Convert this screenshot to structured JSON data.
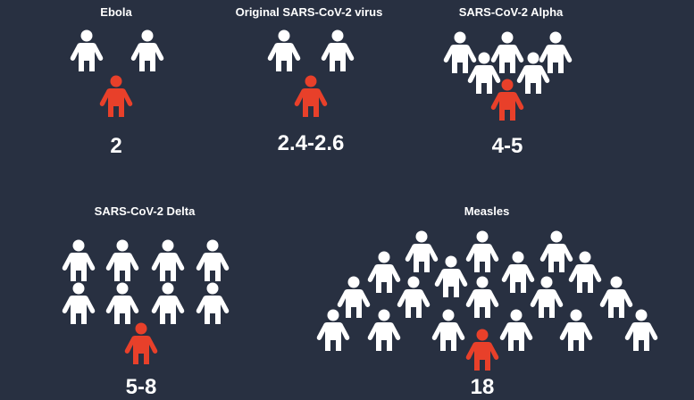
{
  "colors": {
    "background": "#283041",
    "carrier": "#e8402a",
    "contact": "#ffffff"
  },
  "icons": {
    "carrier": "person-icon-infected",
    "contact": "person-icon-contact"
  },
  "panels": [
    {
      "id": "ebola",
      "title": "Ebola",
      "r0": "2",
      "contacts": 2
    },
    {
      "id": "original",
      "title": "Original SARS-CoV-2 virus",
      "r0": "2.4-2.6",
      "contacts": 2
    },
    {
      "id": "alpha",
      "title": "SARS-CoV-2 Alpha",
      "r0": "4-5",
      "contacts": 5
    },
    {
      "id": "delta",
      "title": "SARS-CoV-2 Delta",
      "r0": "5-8",
      "contacts": 8
    },
    {
      "id": "measles",
      "title": "Measles",
      "r0": "18",
      "contacts": 18
    }
  ]
}
